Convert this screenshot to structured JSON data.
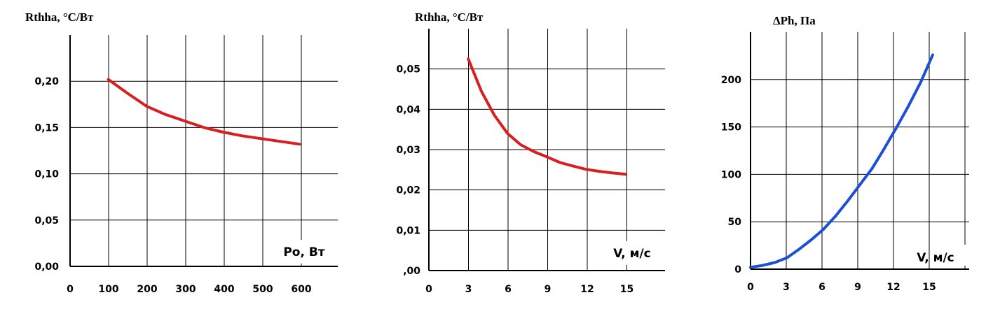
{
  "chart_data": [
    {
      "type": "line",
      "ylabel": "Rthha, °C/Вт",
      "xlabel": "Po, Вт",
      "x_ticks": [
        "0",
        "100",
        "200",
        "300",
        "400",
        "500",
        "600"
      ],
      "y_ticks": [
        "0,00",
        "0,05",
        "0,10",
        "0,15",
        "0,20"
      ],
      "xlim": [
        0,
        700
      ],
      "ylim": [
        0,
        0.25
      ],
      "grid": true,
      "series": [
        {
          "color": "#d81e1e",
          "x": [
            100,
            150,
            200,
            250,
            300,
            350,
            400,
            450,
            500,
            550,
            600
          ],
          "y": [
            0.202,
            0.187,
            0.173,
            0.164,
            0.157,
            0.15,
            0.145,
            0.141,
            0.138,
            0.135,
            0.132
          ]
        }
      ]
    },
    {
      "type": "line",
      "ylabel": "Rthha, °C/Вт",
      "xlabel": "V, м/с",
      "x_ticks": [
        "0",
        "3",
        "6",
        "9",
        "12",
        "15"
      ],
      "y_ticks": [
        ",00",
        "0,01",
        "0,02",
        "0,03",
        "0,04",
        "0,05"
      ],
      "xlim": [
        0,
        18
      ],
      "ylim": [
        0,
        0.06
      ],
      "grid": true,
      "series": [
        {
          "color": "#d81e1e",
          "x": [
            3,
            4,
            5,
            6,
            7,
            8,
            9,
            10,
            11,
            12,
            13,
            14,
            15
          ],
          "y": [
            0.0525,
            0.0445,
            0.0385,
            0.034,
            0.0312,
            0.0295,
            0.0282,
            0.0268,
            0.0259,
            0.0251,
            0.0246,
            0.0242,
            0.0239
          ]
        }
      ]
    },
    {
      "type": "line",
      "ylabel": "ΔPh,  Па",
      "xlabel": "V, м/с",
      "x_ticks": [
        "0",
        "3",
        "6",
        "9",
        "12",
        "15"
      ],
      "y_ticks": [
        "0",
        "50",
        "100",
        "150",
        "200"
      ],
      "xlim": [
        0,
        18
      ],
      "ylim": [
        0,
        250
      ],
      "grid": true,
      "series": [
        {
          "color": "#1c4fd6",
          "x": [
            0,
            1,
            2,
            3,
            4,
            5,
            6,
            7,
            8,
            9,
            10,
            11,
            12,
            13,
            14,
            15
          ],
          "y": [
            2,
            4,
            7,
            12,
            21,
            31,
            42,
            56,
            72,
            89,
            106,
            127,
            149,
            172,
            197,
            226
          ]
        }
      ]
    }
  ]
}
